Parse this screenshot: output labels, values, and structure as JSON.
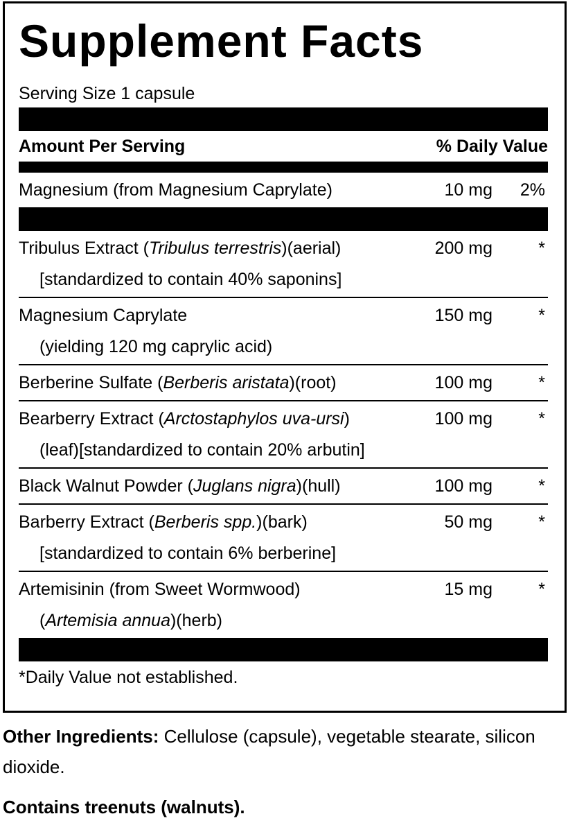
{
  "title": "Supplement Facts",
  "serving_size": "Serving Size 1 capsule",
  "header": {
    "amount": "Amount Per Serving",
    "daily_value": "% Daily Value"
  },
  "rows": [
    {
      "lines": [
        [
          {
            "text": "Magnesium (from Magnesium Caprylate)"
          }
        ]
      ],
      "amount": "10 mg",
      "daily_value": "2%"
    },
    {
      "lines": [
        [
          {
            "text": "Tribulus Extract ("
          },
          {
            "text": "Tribulus terrestris",
            "italic": true
          },
          {
            "text": ")(aerial)"
          }
        ],
        [
          {
            "text": "[standardized to contain 40% saponins]"
          }
        ]
      ],
      "amount": "200 mg",
      "daily_value": "*"
    },
    {
      "lines": [
        [
          {
            "text": "Magnesium Caprylate"
          }
        ],
        [
          {
            "text": "(yielding 120 mg caprylic acid)"
          }
        ]
      ],
      "amount": "150 mg",
      "daily_value": "*"
    },
    {
      "lines": [
        [
          {
            "text": "Berberine Sulfate ("
          },
          {
            "text": "Berberis aristata",
            "italic": true
          },
          {
            "text": ")(root)"
          }
        ]
      ],
      "amount": "100 mg",
      "daily_value": "*"
    },
    {
      "lines": [
        [
          {
            "text": "Bearberry Extract ("
          },
          {
            "text": "Arctostaphylos uva-ursi",
            "italic": true
          },
          {
            "text": ")"
          }
        ],
        [
          {
            "text": "(leaf)[standardized to contain 20% arbutin]"
          }
        ]
      ],
      "amount": "100 mg",
      "daily_value": "*"
    },
    {
      "lines": [
        [
          {
            "text": "Black Walnut Powder ("
          },
          {
            "text": "Juglans nigra",
            "italic": true
          },
          {
            "text": ")(hull)"
          }
        ]
      ],
      "amount": "100 mg",
      "daily_value": "*"
    },
    {
      "lines": [
        [
          {
            "text": "Barberry Extract ("
          },
          {
            "text": "Berberis spp.",
            "italic": true
          },
          {
            "text": ")(bark)"
          }
        ],
        [
          {
            "text": "[standardized to contain 6% berberine]"
          }
        ]
      ],
      "amount": "50 mg",
      "daily_value": "*"
    },
    {
      "lines": [
        [
          {
            "text": "Artemisinin (from Sweet Wormwood)"
          }
        ],
        [
          {
            "text": "("
          },
          {
            "text": "Artemisia annua",
            "italic": true
          },
          {
            "text": ")(herb)"
          }
        ]
      ],
      "amount": "15 mg",
      "daily_value": "*"
    }
  ],
  "footnote": "*Daily Value not established.",
  "other_ingredients": {
    "label": "Other Ingredients:",
    "text": "Cellulose (capsule), vegetable stearate, silicon dioxide."
  },
  "allergen": "Contains treenuts (walnuts)."
}
